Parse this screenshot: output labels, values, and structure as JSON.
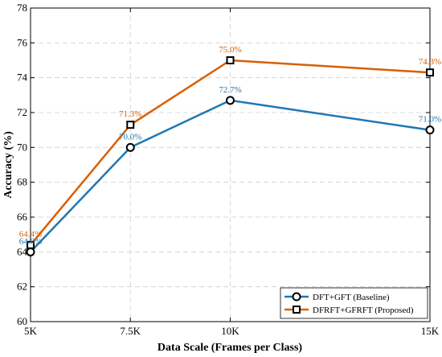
{
  "chart_data": {
    "type": "line",
    "title": "",
    "xlabel": "Data Scale (Frames per Class)",
    "ylabel": "Accuracy (%)",
    "x": [
      5,
      7.5,
      10,
      15
    ],
    "x_tick_labels": [
      "5K",
      "7.5K",
      "10K",
      "15K"
    ],
    "xlim": [
      5,
      15
    ],
    "ylim": [
      60,
      78
    ],
    "y_ticks": [
      60,
      62,
      64,
      66,
      68,
      70,
      72,
      74,
      76,
      78
    ],
    "grid": true,
    "legend_position": "bottom-right",
    "series": [
      {
        "name": "DFT+GFT (Baseline)",
        "values": [
          64.0,
          70.0,
          72.7,
          71.0
        ],
        "labels": [
          "64.0%",
          "70.0%",
          "72.7%",
          "71.0%"
        ],
        "color": "#1f77b4",
        "marker": "circle"
      },
      {
        "name": "DFRFT+GFRFT (Proposed)",
        "values": [
          64.4,
          71.3,
          75.0,
          74.3
        ],
        "labels": [
          "64.4%",
          "71.3%",
          "75.0%",
          "74.3%"
        ],
        "color": "#d95f02",
        "marker": "square"
      }
    ]
  }
}
